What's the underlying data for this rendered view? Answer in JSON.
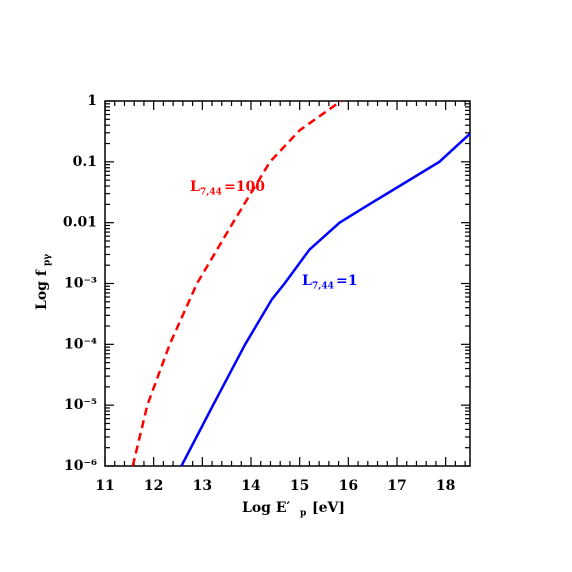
{
  "chart_data": {
    "type": "line",
    "xlabel": "Log E′",
    "xlabel_sub": "p",
    "xlabel_unit": "[eV]",
    "ylabel": "Log f",
    "ylabel_sub": "pγ",
    "log_y": true,
    "xlim": [
      11,
      18.5
    ],
    "xticks": [
      11,
      12,
      13,
      14,
      15,
      16,
      17,
      18
    ],
    "ylim": [
      1e-06,
      1
    ],
    "yticks": [
      {
        "value": 1e-06,
        "label": "10⁻⁶"
      },
      {
        "value": 1e-05,
        "label": "10⁻⁵"
      },
      {
        "value": 0.0001,
        "label": "10⁻⁴"
      },
      {
        "value": 0.001,
        "label": "10⁻³"
      },
      0.01,
      0.1,
      1
    ],
    "series": [
      {
        "name": "=100",
        "label_main": "L",
        "label_sub": "7,44",
        "color": "#ff0000",
        "dash": true,
        "x": [
          11.57,
          11.87,
          12.33,
          12.89,
          13.63,
          14.39,
          15.0,
          15.85
        ],
        "values": [
          1e-06,
          1e-05,
          0.0001,
          0.001,
          0.01,
          0.1,
          0.33,
          1
        ]
      },
      {
        "name": "=1",
        "label_main": "L",
        "label_sub": "7,44",
        "color": "#0000ff",
        "dash": false,
        "x": [
          12.57,
          13.22,
          13.88,
          14.43,
          14.69,
          15.2,
          15.82,
          16.43,
          17.87,
          18.5
        ],
        "values": [
          1e-06,
          1e-05,
          0.0001,
          0.00055,
          0.001,
          0.0036,
          0.01,
          0.02,
          0.1,
          0.29
        ]
      }
    ]
  }
}
